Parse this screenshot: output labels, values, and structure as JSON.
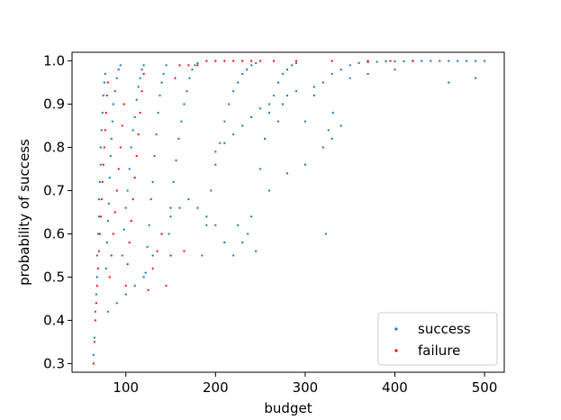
{
  "chart_data": {
    "type": "scatter",
    "title": "",
    "xlabel": "budget",
    "ylabel": "probability of success",
    "xlim": [
      40,
      522
    ],
    "ylim": [
      0.28,
      1.02
    ],
    "xticks": [
      100,
      200,
      300,
      400,
      500
    ],
    "yticks": [
      0.3,
      0.4,
      0.5,
      0.6,
      0.7,
      0.8,
      0.9,
      1.0
    ],
    "xtick_labels": [
      "100",
      "200",
      "300",
      "400",
      "500"
    ],
    "ytick_labels": [
      "0.3",
      "0.4",
      "0.5",
      "0.6",
      "0.7",
      "0.8",
      "0.9",
      "1.0"
    ],
    "grid": false,
    "legend_position": "lower-right",
    "series": [
      {
        "name": "success",
        "color": "#1f77b4",
        "points": [
          [
            64,
            0.32
          ],
          [
            65,
            0.36
          ],
          [
            66,
            0.42
          ],
          [
            67,
            0.46
          ],
          [
            68,
            0.5
          ],
          [
            68,
            0.55
          ],
          [
            69,
            0.6
          ],
          [
            70,
            0.64
          ],
          [
            70,
            0.68
          ],
          [
            71,
            0.72
          ],
          [
            72,
            0.76
          ],
          [
            72,
            0.8
          ],
          [
            73,
            0.84
          ],
          [
            74,
            0.88
          ],
          [
            75,
            0.92
          ],
          [
            76,
            0.95
          ],
          [
            77,
            0.97
          ],
          [
            78,
            0.52
          ],
          [
            79,
            0.58
          ],
          [
            80,
            0.63
          ],
          [
            81,
            0.67
          ],
          [
            82,
            0.73
          ],
          [
            83,
            0.78
          ],
          [
            84,
            0.82
          ],
          [
            85,
            0.86
          ],
          [
            86,
            0.9
          ],
          [
            88,
            0.93
          ],
          [
            90,
            0.96
          ],
          [
            92,
            0.98
          ],
          [
            94,
            0.99
          ],
          [
            96,
            0.55
          ],
          [
            98,
            0.61
          ],
          [
            100,
            0.66
          ],
          [
            102,
            0.7
          ],
          [
            104,
            0.75
          ],
          [
            106,
            0.8
          ],
          [
            108,
            0.84
          ],
          [
            110,
            0.87
          ],
          [
            112,
            0.91
          ],
          [
            114,
            0.94
          ],
          [
            116,
            0.96
          ],
          [
            118,
            0.98
          ],
          [
            120,
            0.99
          ],
          [
            122,
            0.51
          ],
          [
            124,
            0.57
          ],
          [
            126,
            0.62
          ],
          [
            128,
            0.68
          ],
          [
            130,
            0.72
          ],
          [
            132,
            0.78
          ],
          [
            134,
            0.83
          ],
          [
            136,
            0.88
          ],
          [
            138,
            0.92
          ],
          [
            140,
            0.95
          ],
          [
            142,
            0.97
          ],
          [
            145,
            0.99
          ],
          [
            148,
            0.6
          ],
          [
            150,
            0.66
          ],
          [
            153,
            0.72
          ],
          [
            156,
            0.77
          ],
          [
            159,
            0.82
          ],
          [
            162,
            0.86
          ],
          [
            165,
            0.9
          ],
          [
            168,
            0.93
          ],
          [
            171,
            0.96
          ],
          [
            174,
            0.98
          ],
          [
            177,
            0.99
          ],
          [
            180,
            0.995
          ],
          [
            185,
            0.55
          ],
          [
            190,
            0.62
          ],
          [
            195,
            0.7
          ],
          [
            200,
            0.76
          ],
          [
            205,
            0.81
          ],
          [
            210,
            0.86
          ],
          [
            215,
            0.9
          ],
          [
            220,
            0.93
          ],
          [
            225,
            0.95
          ],
          [
            230,
            0.97
          ],
          [
            235,
            0.98
          ],
          [
            240,
            0.99
          ],
          [
            245,
            0.995
          ],
          [
            250,
            0.75
          ],
          [
            255,
            0.82
          ],
          [
            260,
            0.88
          ],
          [
            265,
            0.92
          ],
          [
            270,
            0.95
          ],
          [
            275,
            0.97
          ],
          [
            280,
            0.98
          ],
          [
            285,
            0.99
          ],
          [
            290,
            0.995
          ],
          [
            300,
            0.86
          ],
          [
            310,
            0.92
          ],
          [
            320,
            0.95
          ],
          [
            330,
            0.97
          ],
          [
            340,
            0.98
          ],
          [
            350,
            0.99
          ],
          [
            360,
            0.995
          ],
          [
            370,
            0.997
          ],
          [
            380,
            0.998
          ],
          [
            390,
            0.999
          ],
          [
            400,
            0.999
          ],
          [
            410,
            0.999
          ],
          [
            420,
            1.0
          ],
          [
            430,
            1.0
          ],
          [
            440,
            1.0
          ],
          [
            450,
            1.0
          ],
          [
            460,
            1.0
          ],
          [
            470,
            1.0
          ],
          [
            480,
            1.0
          ],
          [
            490,
            1.0
          ],
          [
            500,
            1.0
          ],
          [
            236,
            0.6
          ],
          [
            230,
            0.58
          ],
          [
            225,
            0.62
          ],
          [
            240,
            0.64
          ],
          [
            245,
            0.56
          ],
          [
            260,
            0.7
          ],
          [
            280,
            0.74
          ],
          [
            300,
            0.76
          ],
          [
            320,
            0.8
          ],
          [
            330,
            0.82
          ],
          [
            340,
            0.85
          ],
          [
            220,
            0.55
          ],
          [
            210,
            0.58
          ],
          [
            200,
            0.62
          ],
          [
            190,
            0.64
          ],
          [
            180,
            0.66
          ],
          [
            170,
            0.68
          ],
          [
            160,
            0.66
          ],
          [
            150,
            0.64
          ],
          [
            140,
            0.6
          ],
          [
            130,
            0.55
          ],
          [
            120,
            0.5
          ],
          [
            110,
            0.48
          ],
          [
            100,
            0.46
          ],
          [
            90,
            0.44
          ],
          [
            80,
            0.42
          ],
          [
            323,
            0.6
          ],
          [
            326,
            0.84
          ],
          [
            331,
            0.88
          ],
          [
            270,
            0.86
          ],
          [
            275,
            0.9
          ],
          [
            460,
            0.95
          ],
          [
            490,
            0.96
          ],
          [
            400,
            0.98
          ],
          [
            370,
            0.97
          ],
          [
            350,
            0.96
          ],
          [
            310,
            0.94
          ],
          [
            290,
            0.93
          ],
          [
            280,
            0.92
          ],
          [
            260,
            0.9
          ],
          [
            250,
            0.89
          ],
          [
            240,
            0.87
          ],
          [
            230,
            0.85
          ],
          [
            220,
            0.83
          ],
          [
            210,
            0.81
          ],
          [
            200,
            0.79
          ]
        ]
      },
      {
        "name": "failure",
        "color": "#ff0000",
        "points": [
          [
            64,
            0.3
          ],
          [
            65,
            0.35
          ],
          [
            66,
            0.4
          ],
          [
            67,
            0.44
          ],
          [
            68,
            0.48
          ],
          [
            69,
            0.52
          ],
          [
            70,
            0.56
          ],
          [
            71,
            0.6
          ],
          [
            72,
            0.64
          ],
          [
            73,
            0.68
          ],
          [
            74,
            0.72
          ],
          [
            75,
            0.76
          ],
          [
            76,
            0.8
          ],
          [
            77,
            0.84
          ],
          [
            78,
            0.88
          ],
          [
            79,
            0.92
          ],
          [
            80,
            0.95
          ],
          [
            82,
            0.5
          ],
          [
            84,
            0.55
          ],
          [
            86,
            0.6
          ],
          [
            88,
            0.65
          ],
          [
            90,
            0.7
          ],
          [
            92,
            0.75
          ],
          [
            94,
            0.8
          ],
          [
            96,
            0.85
          ],
          [
            98,
            0.9
          ],
          [
            100,
            0.48
          ],
          [
            102,
            0.53
          ],
          [
            104,
            0.58
          ],
          [
            106,
            0.63
          ],
          [
            108,
            0.68
          ],
          [
            110,
            0.73
          ],
          [
            112,
            0.78
          ],
          [
            114,
            0.83
          ],
          [
            116,
            0.88
          ],
          [
            118,
            0.93
          ],
          [
            120,
            0.97
          ],
          [
            125,
            0.47
          ],
          [
            130,
            0.52
          ],
          [
            135,
            0.56
          ],
          [
            140,
            0.6
          ],
          [
            145,
            0.48
          ],
          [
            150,
            0.55
          ],
          [
            155,
            0.96
          ],
          [
            160,
            0.99
          ],
          [
            165,
            0.56
          ],
          [
            170,
            0.99
          ],
          [
            180,
            0.99
          ],
          [
            190,
            1.0
          ],
          [
            200,
            1.0
          ],
          [
            210,
            1.0
          ],
          [
            220,
            1.0
          ],
          [
            230,
            1.0
          ],
          [
            240,
            1.0
          ],
          [
            250,
            1.0
          ],
          [
            265,
            1.0
          ],
          [
            290,
            1.0
          ],
          [
            330,
            1.0
          ],
          [
            370,
            1.0
          ],
          [
            395,
            1.0
          ],
          [
            420,
            1.0
          ]
        ]
      }
    ]
  }
}
